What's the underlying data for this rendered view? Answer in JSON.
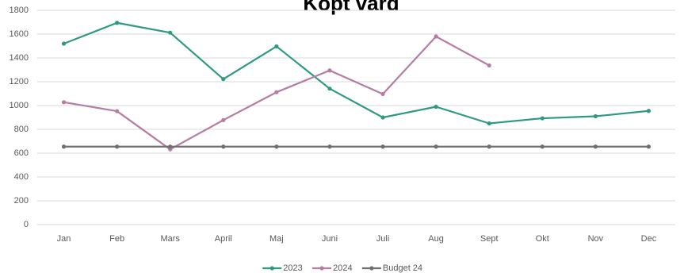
{
  "chart_data": {
    "type": "line",
    "title": "Köpt vård",
    "categories": [
      "Jan",
      "Feb",
      "Mars",
      "April",
      "Maj",
      "Juni",
      "Juli",
      "Aug",
      "Sept",
      "Okt",
      "Nov",
      "Dec"
    ],
    "ylim": [
      0,
      1800
    ],
    "yticks": [
      0,
      200,
      400,
      600,
      800,
      1000,
      1200,
      1400,
      1600,
      1800
    ],
    "grid": true,
    "legend": "bottom",
    "series": [
      {
        "name": "2023",
        "color": "#2e9a84",
        "values": [
          1520,
          1695,
          1612,
          1222,
          1497,
          1142,
          900,
          990,
          850,
          893,
          910,
          955
        ]
      },
      {
        "name": "2024",
        "color": "#b57ca4",
        "values": [
          1028,
          953,
          632,
          878,
          1112,
          1295,
          1097,
          1580,
          1337,
          null,
          null,
          null
        ]
      },
      {
        "name": "Budget 24",
        "color": "#6f6f6f",
        "values": [
          655,
          655,
          655,
          655,
          655,
          655,
          655,
          655,
          655,
          655,
          655,
          655
        ]
      }
    ]
  }
}
